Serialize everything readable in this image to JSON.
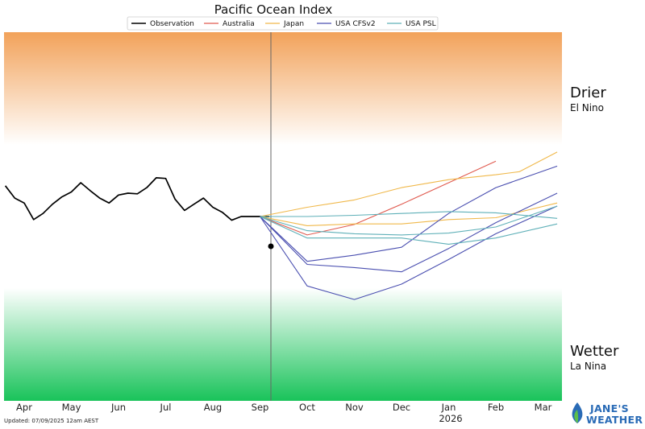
{
  "colors": {
    "observation": "#000000",
    "australia": "#e05a4f",
    "japan": "#f0b84a",
    "usa_cfsv2": "#4a4fb0",
    "usa_psl": "#5fb0b8",
    "drier_zone": "#f2a25a",
    "wetter_zone": "#19c35a",
    "brand": "#2a6bb6",
    "brand_leaf": "#5cbf4a"
  },
  "footer": {
    "updated": "Updated: 07/09/2025 12am AEST",
    "brand_line1": "JANE'S",
    "brand_line2": "WEATHER"
  },
  "chart_data": {
    "type": "line",
    "title": "Pacific Ocean Index",
    "xlabel": "",
    "ylabel": "",
    "x_ticks": [
      "Apr",
      "May",
      "Jun",
      "Jul",
      "Aug",
      "Sep",
      "Oct",
      "Nov",
      "Dec",
      "Jan",
      "Feb",
      "Mar"
    ],
    "x_year_label": "2026",
    "x_year_under": "Jan",
    "ylim": [
      -3.0,
      3.0
    ],
    "current_month": "Sep",
    "legend_position": "top",
    "grid": false,
    "zones": [
      {
        "label": "Drier",
        "sublabel": "El Nino",
        "from": 1.0,
        "to": 3.0,
        "color": "#f2a25a"
      },
      {
        "label": "Wetter",
        "sublabel": "La Nina",
        "from": -3.0,
        "to": -0.7,
        "color": "#19c35a"
      }
    ],
    "series": [
      {
        "name": "Observation",
        "color": "#000000",
        "x": [
          -0.4,
          -0.2,
          0.0,
          0.2,
          0.4,
          0.6,
          0.8,
          1.0,
          1.2,
          1.4,
          1.6,
          1.8,
          2.0,
          2.2,
          2.4,
          2.6,
          2.8,
          3.0,
          3.2,
          3.4,
          3.6,
          3.8,
          4.0,
          4.2,
          4.4,
          4.6,
          4.8,
          5.0,
          5.2
        ],
        "y": [
          0.5,
          0.3,
          0.22,
          -0.05,
          0.05,
          0.2,
          0.32,
          0.4,
          0.55,
          0.42,
          0.3,
          0.22,
          0.35,
          0.38,
          0.37,
          0.47,
          0.63,
          0.62,
          0.28,
          0.1,
          0.2,
          0.3,
          0.15,
          0.07,
          -0.06,
          0.0,
          0.0,
          0.0,
          0.0
        ]
      },
      {
        "name": "Australia",
        "color": "#e05a4f",
        "x": [
          5.0,
          6.0,
          7.0,
          8.0,
          9.0,
          10.0
        ],
        "y": [
          0.0,
          -0.3,
          -0.13,
          0.2,
          0.55,
          0.9
        ]
      },
      {
        "name": "Japan",
        "color": "#f0b84a",
        "x": [
          5.0,
          6.0,
          7.0,
          8.0,
          9.0,
          10.0,
          10.5,
          11.3
        ],
        "y": [
          0.0,
          0.15,
          0.27,
          0.47,
          0.6,
          0.68,
          0.73,
          1.05
        ]
      },
      {
        "name": "Japan",
        "color": "#f0b84a",
        "x": [
          5.0,
          6.0,
          7.0,
          8.0,
          9.0,
          10.0,
          11.3
        ],
        "y": [
          0.0,
          -0.15,
          -0.12,
          -0.12,
          -0.05,
          -0.02,
          0.22
        ]
      },
      {
        "name": "USA CFSv2",
        "color": "#4a4fb0",
        "x": [
          5.0,
          6.0,
          7.0,
          8.0,
          9.0,
          10.0,
          11.3
        ],
        "y": [
          0.0,
          -0.73,
          -0.63,
          -0.5,
          0.05,
          0.47,
          0.82
        ]
      },
      {
        "name": "USA CFSv2",
        "color": "#4a4fb0",
        "x": [
          5.0,
          6.0,
          7.0,
          8.0,
          9.0,
          10.0,
          11.3
        ],
        "y": [
          0.0,
          -0.78,
          -0.83,
          -0.9,
          -0.52,
          -0.1,
          0.38
        ]
      },
      {
        "name": "USA CFSv2",
        "color": "#4a4fb0",
        "x": [
          5.0,
          6.0,
          7.0,
          8.0,
          9.0,
          10.0,
          11.3
        ],
        "y": [
          0.0,
          -1.13,
          -1.35,
          -1.1,
          -0.7,
          -0.28,
          0.17
        ]
      },
      {
        "name": "USA PSL",
        "color": "#5fb0b8",
        "x": [
          5.0,
          6.0,
          7.0,
          8.0,
          9.0,
          10.0,
          11.3
        ],
        "y": [
          0.0,
          0.0,
          0.02,
          0.05,
          0.08,
          0.06,
          -0.03
        ]
      },
      {
        "name": "USA PSL",
        "color": "#5fb0b8",
        "x": [
          5.0,
          6.0,
          7.0,
          8.0,
          9.0,
          10.0,
          11.3
        ],
        "y": [
          0.0,
          -0.23,
          -0.28,
          -0.3,
          -0.27,
          -0.17,
          0.17
        ]
      },
      {
        "name": "USA PSL",
        "color": "#5fb0b8",
        "x": [
          5.0,
          6.0,
          7.0,
          8.0,
          9.0,
          10.0,
          11.3
        ],
        "y": [
          0.0,
          -0.35,
          -0.35,
          -0.35,
          -0.45,
          -0.35,
          -0.12
        ]
      }
    ],
    "legend": [
      "Observation",
      "Australia",
      "Japan",
      "USA CFSv2",
      "USA PSL"
    ]
  }
}
